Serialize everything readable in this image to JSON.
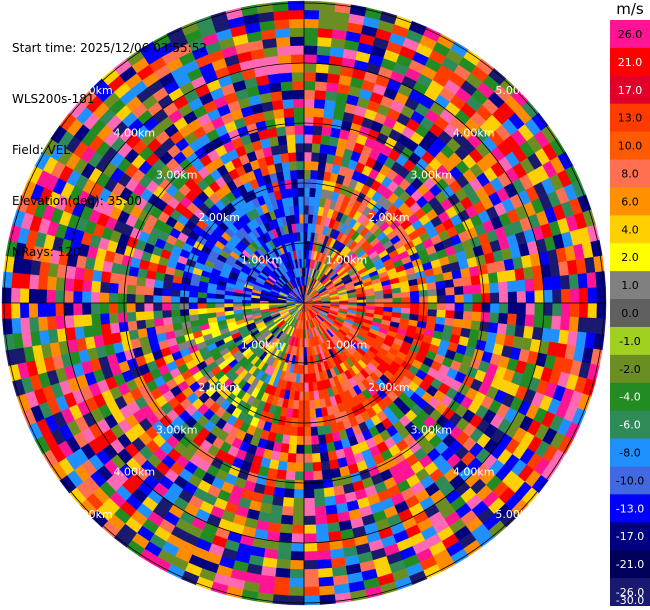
{
  "header": {
    "start_time": "Start time: 2025/12/06 03:55:52",
    "instrument": "WLS200s-181",
    "field": "Field: VEL",
    "elevation": "Elevation(deg): 35.00",
    "nrays": "NRays: 120"
  },
  "range_rings": [
    {
      "label": "1.00km"
    },
    {
      "label": "2.00km"
    },
    {
      "label": "3.00km"
    },
    {
      "label": "4.00km"
    },
    {
      "label": "5.00km"
    }
  ],
  "colorbar": {
    "unit": "m/s",
    "ticks": [
      "26.0",
      "21.0",
      "17.0",
      "13.0",
      "10.0",
      "8.0",
      "6.0",
      "4.0",
      "2.0",
      "1.0",
      "0.0",
      "-1.0",
      "-2.0",
      "-4.0",
      "-6.0",
      "-8.0",
      "-10.0",
      "-13.0",
      "-17.0",
      "-21.0",
      "-26.0",
      "-30.0"
    ],
    "colors": [
      "#ff1493",
      "#ff0000",
      "#e0002a",
      "#ff3c00",
      "#ff5a00",
      "#ff7050",
      "#ff9000",
      "#ffd000",
      "#ffff00",
      "#808080",
      "#606060",
      "#a0d020",
      "#6b8e23",
      "#228b22",
      "#2e8b57",
      "#1e90ff",
      "#4169e1",
      "#0000ff",
      "#000080",
      "#00005a",
      "#191970"
    ]
  },
  "chart_data": {
    "type": "heatmap",
    "field": "VEL",
    "nrays": 120,
    "unit": "m/s"
  }
}
